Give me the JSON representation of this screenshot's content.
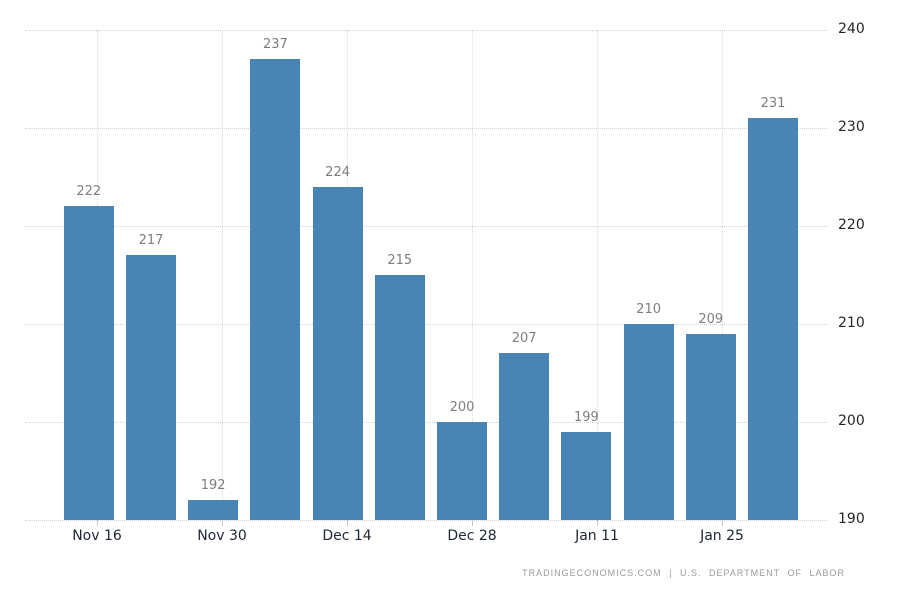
{
  "chart_data": {
    "type": "bar",
    "title": "",
    "values": [
      222,
      217,
      192,
      237,
      224,
      215,
      200,
      207,
      199,
      210,
      209,
      231
    ],
    "bar_value_labels": [
      "222",
      "217",
      "192",
      "237",
      "224",
      "215",
      "200",
      "207",
      "199",
      "210",
      "209",
      "231"
    ],
    "x_tick_labels": [
      "Nov 16",
      "Nov 30",
      "Dec 14",
      "Dec 28",
      "Jan 11",
      "Jan 25"
    ],
    "y_tick_labels": [
      "240",
      "230",
      "220",
      "210",
      "200",
      "190"
    ],
    "y_ticks": [
      240,
      230,
      220,
      210,
      200,
      190
    ],
    "ylim": [
      190,
      240
    ],
    "xlabel": "",
    "ylabel": "",
    "legend": "none",
    "grid": "dotted",
    "value_labels_shown": true,
    "y_axis_position": "right"
  },
  "colors": {
    "bar": "#4884B4",
    "hgrid": "#d0d0d0",
    "vgrid": "#d9d9d9",
    "tick": "#c6c6c6",
    "bar_value_label": "#7e7e7e",
    "x_axis_label": "#1e2735",
    "y_axis_label": "#262626",
    "attribution": "#9a9a9a",
    "background": "#ffffff"
  },
  "footer": {
    "attribution": "TRADINGECONOMICS.COM | U.S. DEPARTMENT OF LABOR"
  }
}
